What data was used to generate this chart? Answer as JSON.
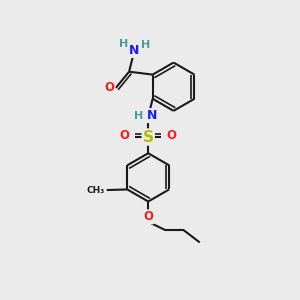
{
  "background_color": "#ebebeb",
  "bond_color": "#1a1a1a",
  "bond_width": 1.5,
  "atom_colors": {
    "C": "#1a1a1a",
    "H": "#4a9b9b",
    "N": "#1a1aff",
    "O": "#ff1a1a",
    "S": "#b8b800"
  },
  "figsize": [
    3.0,
    3.0
  ],
  "dpi": 100
}
